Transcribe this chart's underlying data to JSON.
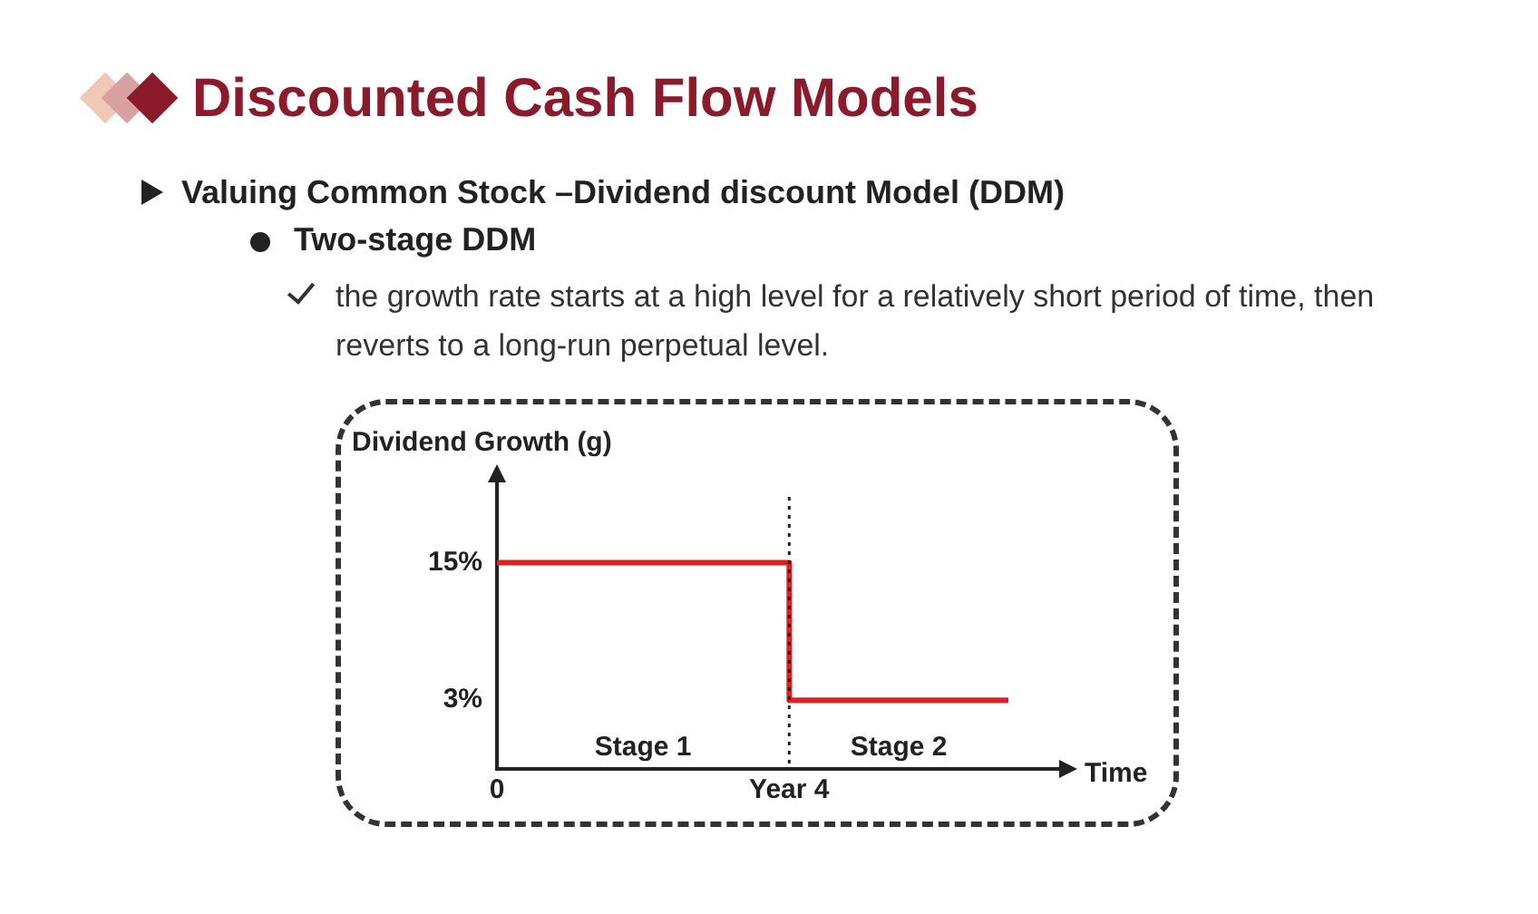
{
  "chart_data": {
    "type": "step",
    "title": "Discounted Cash Flow Models",
    "subtitle": "Valuing Common Stock –Dividend discount Model (DDM)",
    "annotations": [
      "Two-stage DDM",
      "the growth rate starts at a high level for a relatively short period of time, then reverts to a long-run perpetual level.",
      "Stage 1",
      "Stage 2"
    ],
    "ylabel": "Dividend Growth (g)",
    "xlabel": "Time",
    "categories": [
      "0",
      null,
      null,
      null,
      "Year 4",
      null,
      null,
      null
    ],
    "series": [
      {
        "color": "#e02020",
        "values": [
          15,
          15,
          15,
          15,
          3,
          3,
          3,
          3
        ]
      }
    ],
    "ylim": [
      -3,
      22
    ],
    "yticks": [
      {
        "value": 3,
        "label": "3%"
      },
      {
        "value": 15,
        "label": "15%"
      }
    ],
    "ref_lines": [
      {
        "axis": "x",
        "value": "Year 4",
        "line_style": "dotted"
      }
    ],
    "grid": false,
    "legend": false,
    "marker": "none"
  }
}
